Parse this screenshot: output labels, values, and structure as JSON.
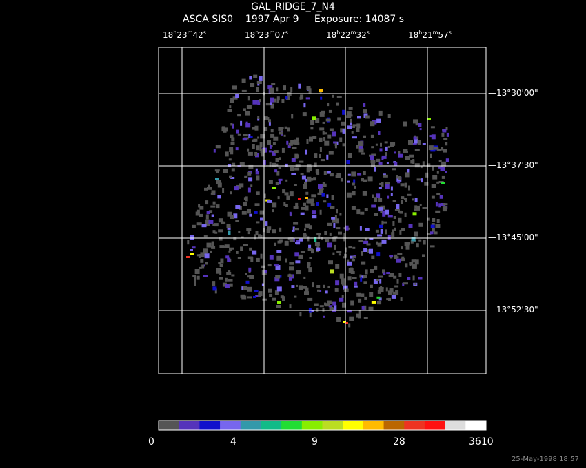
{
  "header": {
    "title": "GAL_RIDGE_7_N4",
    "instrument": "ASCA SIS0",
    "date": "1997 Apr  9",
    "exposure": "Exposure: 14087 s"
  },
  "ra_ticks": [
    {
      "h": "18",
      "m": "23",
      "s": "42"
    },
    {
      "h": "18",
      "m": "23",
      "s": "07"
    },
    {
      "h": "18",
      "m": "22",
      "s": "32"
    },
    {
      "h": "18",
      "m": "21",
      "s": "57"
    }
  ],
  "dec_ticks": [
    {
      "deg": "13",
      "min": "30",
      "sec": "00"
    },
    {
      "deg": "13",
      "min": "37",
      "sec": "30"
    },
    {
      "deg": "13",
      "min": "45",
      "sec": "00"
    },
    {
      "deg": "13",
      "min": "52",
      "sec": "30"
    }
  ],
  "colorbar": {
    "colors": [
      "#555555",
      "#5533bb",
      "#1010cc",
      "#7766ee",
      "#3399aa",
      "#11bb88",
      "#22dd33",
      "#88ee00",
      "#bbdd22",
      "#ffff00",
      "#ffbb00",
      "#bb6600",
      "#ee3322",
      "#ff1111",
      "#dddddd",
      "#ffffff"
    ],
    "labels": [
      "0",
      "4",
      "9",
      "28",
      "3610"
    ]
  },
  "timestamp": "25-May-1998 18:57"
}
